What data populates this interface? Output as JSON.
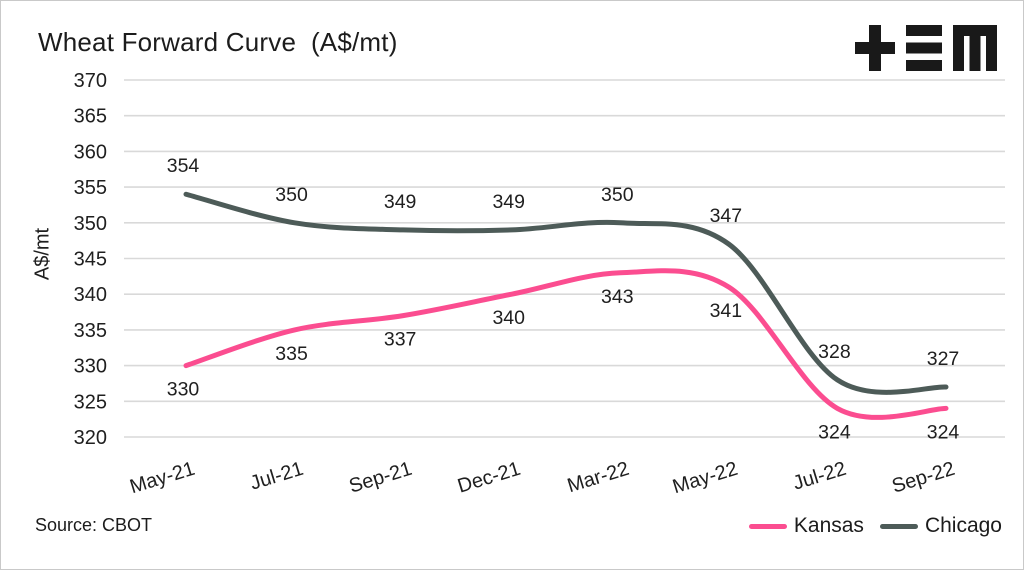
{
  "title": "Wheat Forward Curve  (A$/mt)",
  "logo_name": "tem-logo",
  "source_note": "Source: CBOT",
  "legend": {
    "items": [
      {
        "label": "Kansas",
        "color": "#fb4d90"
      },
      {
        "label": "Chicago",
        "color": "#4d5b58"
      }
    ]
  },
  "chart_data": {
    "type": "line",
    "title": "Wheat Forward Curve  (A$/mt)",
    "ylabel": "A$/mt",
    "xlabel": "",
    "categories": [
      "May-21",
      "Jul-21",
      "Sep-21",
      "Dec-21",
      "Mar-22",
      "May-22",
      "Jul-22",
      "Sep-22"
    ],
    "series": [
      {
        "name": "Kansas",
        "color": "#fb4d90",
        "values": [
          330,
          335,
          337,
          340,
          343,
          341,
          324,
          324
        ],
        "label_position": "below"
      },
      {
        "name": "Chicago",
        "color": "#4d5b58",
        "values": [
          354,
          350,
          349,
          349,
          350,
          347,
          328,
          327
        ],
        "label_position": "above"
      }
    ],
    "ylim": [
      320,
      370
    ],
    "ytick_step": 5,
    "grid": "horizontal-only",
    "gridline_color": "#d9d9d9",
    "data_labels": true,
    "line_style": "smooth",
    "legend_position": "bottom-right",
    "source": "Source: CBOT"
  }
}
